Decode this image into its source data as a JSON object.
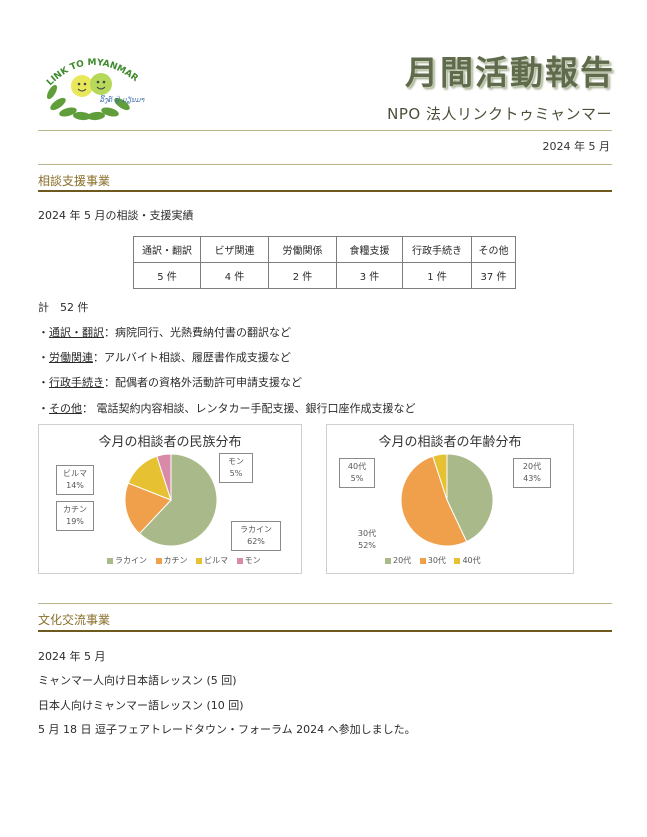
{
  "header": {
    "logo_text_top": "LINK TO MYANMAR",
    "logo_text_bottom": "ລິ້ງຄ໌ ຢູ່ ມຽນມາ",
    "title": "月間活動報告",
    "organization": "NPO 法人リンクトゥミャンマー",
    "date": "2024 年 5 月"
  },
  "consultation": {
    "section_title": "相談支援事業",
    "intro": "2024 年 5 月の相談・支援実績",
    "table": {
      "headers": [
        "通訳・翻訳",
        "ビザ関連",
        "労働関係",
        "食糧支援",
        "行政手続き",
        "その他"
      ],
      "values": [
        "5 件",
        "4 件",
        "2 件",
        "3 件",
        "1 件",
        "37 件"
      ]
    },
    "total": "計　52 件",
    "details": [
      {
        "prefix": "・",
        "label": "通訳・翻訳",
        "text": "：病院同行、光熱費納付書の翻訳など"
      },
      {
        "prefix": "・",
        "label": "労働関連",
        "text": "：アルバイト相談、履歴書作成支援など"
      },
      {
        "prefix": "・",
        "label": "行政手続き",
        "text": "：配偶者の資格外活動許可申請支援など"
      },
      {
        "prefix": "・",
        "label": "その他",
        "text": "： 電話契約内容相談、レンタカー手配支援、銀行口座作成支援など"
      }
    ]
  },
  "chart_data": [
    {
      "type": "pie",
      "title": "今月の相談者の民族分布",
      "categories": [
        "ラカイン",
        "カチン",
        "ビルマ",
        "モン"
      ],
      "values": [
        62,
        19,
        14,
        5
      ],
      "value_labels": [
        "62%",
        "19%",
        "14%",
        "5%"
      ],
      "colors": [
        "#a9b98a",
        "#f0a04b",
        "#e6c233",
        "#d98aa8"
      ],
      "legend": "bottom"
    },
    {
      "type": "pie",
      "title": "今月の相談者の年齢分布",
      "categories": [
        "20代",
        "30代",
        "40代"
      ],
      "values": [
        43,
        52,
        5
      ],
      "value_labels": [
        "43%",
        "52%",
        "5%"
      ],
      "colors": [
        "#a9b98a",
        "#f0a04b",
        "#e6c233"
      ],
      "legend": "bottom"
    }
  ],
  "culture": {
    "section_title": "文化交流事業",
    "lines": [
      "2024 年 5 月",
      "ミャンマー人向け日本語レッスン (5 回)",
      "日本人向けミャンマー語レッスン (10 回)",
      "5 月 18 日 逗子フェアトレードタウン・フォーラム 2024 へ参加しました。"
    ]
  }
}
